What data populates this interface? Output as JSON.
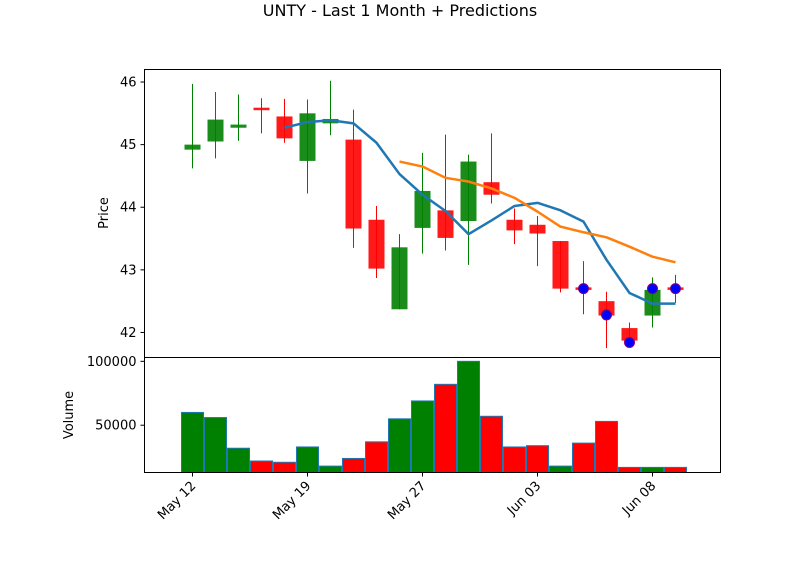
{
  "chart_data": {
    "type": "candlestick",
    "title": "UNTY - Last 1 Month + Predictions",
    "x_tick_labels": [
      "May 12",
      "May 19",
      "May 27",
      "Jun 03",
      "Jun 08"
    ],
    "x_ticks_at_index": [
      0,
      5,
      10,
      15,
      20
    ],
    "price_panel": {
      "ylabel": "Price",
      "ylim": [
        41.6,
        46.2
      ],
      "yticks": [
        42,
        43,
        44,
        45,
        46
      ],
      "up_color": "#008000",
      "down_color": "#ff0000",
      "candles": [
        {
          "o": 44.92,
          "h": 45.97,
          "l": 44.62,
          "c": 45.0
        },
        {
          "o": 45.05,
          "h": 45.84,
          "l": 44.78,
          "c": 45.4
        },
        {
          "o": 45.27,
          "h": 45.8,
          "l": 45.06,
          "c": 45.32
        },
        {
          "o": 45.59,
          "h": 45.74,
          "l": 45.18,
          "c": 45.55
        },
        {
          "o": 45.45,
          "h": 45.73,
          "l": 45.03,
          "c": 45.1
        },
        {
          "o": 44.74,
          "h": 45.72,
          "l": 44.22,
          "c": 45.5
        },
        {
          "o": 45.34,
          "h": 46.02,
          "l": 45.15,
          "c": 45.41
        },
        {
          "o": 45.08,
          "h": 45.56,
          "l": 43.35,
          "c": 43.66
        },
        {
          "o": 43.8,
          "h": 44.02,
          "l": 42.87,
          "c": 43.02
        },
        {
          "o": 42.37,
          "h": 43.57,
          "l": 42.37,
          "c": 43.36
        },
        {
          "o": 43.67,
          "h": 44.87,
          "l": 43.26,
          "c": 44.26
        },
        {
          "o": 43.95,
          "h": 45.16,
          "l": 43.31,
          "c": 43.51
        },
        {
          "o": 43.78,
          "h": 44.84,
          "l": 43.08,
          "c": 44.73
        },
        {
          "o": 44.4,
          "h": 45.18,
          "l": 44.06,
          "c": 44.2
        },
        {
          "o": 43.8,
          "h": 43.98,
          "l": 43.41,
          "c": 43.63
        },
        {
          "o": 43.72,
          "h": 43.86,
          "l": 43.06,
          "c": 43.58
        },
        {
          "o": 43.46,
          "h": 43.46,
          "l": 42.64,
          "c": 42.7
        },
        {
          "o": 42.72,
          "h": 43.14,
          "l": 42.29,
          "c": 42.68
        },
        {
          "o": 42.5,
          "h": 42.65,
          "l": 41.75,
          "c": 42.27
        },
        {
          "o": 42.07,
          "h": 42.16,
          "l": 41.82,
          "c": 41.87
        },
        {
          "o": 42.27,
          "h": 42.88,
          "l": 42.08,
          "c": 42.68
        },
        {
          "o": 42.72,
          "h": 42.92,
          "l": 42.47,
          "c": 42.68
        }
      ],
      "lines": [
        {
          "color": "#1f77b4",
          "start_index": 4,
          "values": [
            45.27,
            45.36,
            45.39,
            45.34,
            45.03,
            44.53,
            44.2,
            43.94,
            43.57,
            43.79,
            44.02,
            44.07,
            43.95,
            43.77,
            43.16,
            42.63,
            42.46,
            42.46
          ]
        },
        {
          "color": "#ff7f0e",
          "start_index": 9,
          "values": [
            44.73,
            44.65,
            44.47,
            44.41,
            44.3,
            44.15,
            43.93,
            43.69,
            43.6,
            43.52,
            43.37,
            43.21,
            43.12
          ]
        }
      ],
      "markers": [
        {
          "index": 17,
          "value": 42.7
        },
        {
          "index": 18,
          "value": 42.28
        },
        {
          "index": 19,
          "value": 41.84
        },
        {
          "index": 20,
          "value": 42.7
        },
        {
          "index": 21,
          "value": 42.7
        }
      ],
      "marker_fill": "#0000ff",
      "marker_edge": "#800080"
    },
    "volume_panel": {
      "ylabel": "Volume",
      "ylim": [
        13000,
        103000
      ],
      "yticks": [
        50000,
        100000
      ],
      "edge_color": "#1f77b4",
      "values": [
        60000,
        56000,
        32000,
        22000,
        21000,
        33000,
        18000,
        24000,
        37000,
        55000,
        69000,
        82000,
        100000,
        57000,
        33000,
        34000,
        18000,
        36000,
        53000,
        17000,
        17000,
        17000
      ],
      "colors": [
        "green",
        "green",
        "green",
        "red",
        "red",
        "green",
        "green",
        "red",
        "red",
        "green",
        "green",
        "red",
        "green",
        "red",
        "red",
        "red",
        "green",
        "red",
        "red",
        "red",
        "green",
        "red"
      ]
    }
  }
}
